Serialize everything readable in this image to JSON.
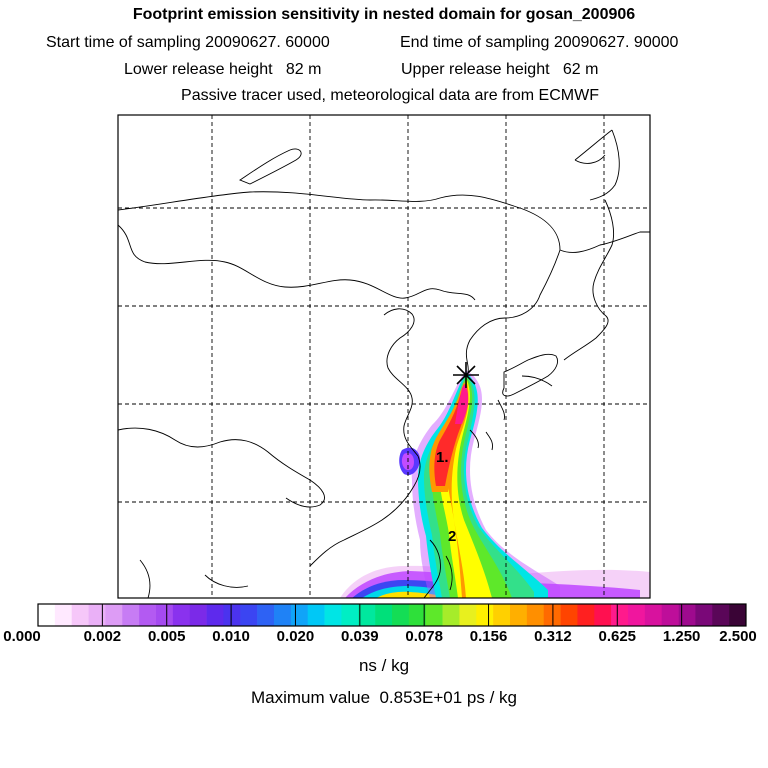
{
  "header": {
    "title": "Footprint emission sensitivity in nested domain for gosan_200906",
    "line2_start": "Start time of sampling 20090627. 60000",
    "line2_end": "End time of sampling 20090627. 90000",
    "line3_lower": "Lower release height   82 m",
    "line3_upper": "Upper release height   62 m",
    "line4": "Passive tracer used, meteorological data are from ECMWF"
  },
  "map": {
    "labels": [
      {
        "id": "label-1",
        "text": "1."
      },
      {
        "id": "label-2",
        "text": "2"
      }
    ],
    "plume_colors": [
      "#ff7fd0",
      "#c24cff",
      "#5a38ff",
      "#1a8cff",
      "#00e5e5",
      "#33e08a",
      "#4ee04e",
      "#ffff00",
      "#ff9900",
      "#ff2a2a",
      "#ff1a8c"
    ]
  },
  "colorbar": {
    "segment_colors": [
      "#ffffff",
      "#ffe9ff",
      "#f6c7f9",
      "#eab0f7",
      "#dd9cf5",
      "#c77cf4",
      "#b35af2",
      "#a54af0",
      "#8a32ee",
      "#7b2ae8",
      "#5e2aed",
      "#4b33ef",
      "#3b45f2",
      "#2e62f4",
      "#1f82f6",
      "#10a4f8",
      "#00c8f6",
      "#00e5e5",
      "#00eec4",
      "#00e89e",
      "#00e07a",
      "#14dd55",
      "#2ee03a",
      "#5ee82a",
      "#a6ec2a",
      "#e8f01e",
      "#fff000",
      "#ffd000",
      "#ffaf00",
      "#ff8f00",
      "#ff6a00",
      "#ff4400",
      "#ff2020",
      "#ff1050",
      "#ff1a8c",
      "#f0169e",
      "#d8129e",
      "#be0e9a",
      "#9e0a8e",
      "#7a0878",
      "#5a0658",
      "#3a0436"
    ],
    "ticks": [
      "0.000",
      "0.002",
      "0.005",
      "0.010",
      "0.020",
      "0.039",
      "0.078",
      "0.156",
      "0.312",
      "0.625",
      "1.250",
      "2.500"
    ],
    "unit": "ns / kg",
    "max_value": "Maximum value  0.853E+01 ps / kg"
  }
}
